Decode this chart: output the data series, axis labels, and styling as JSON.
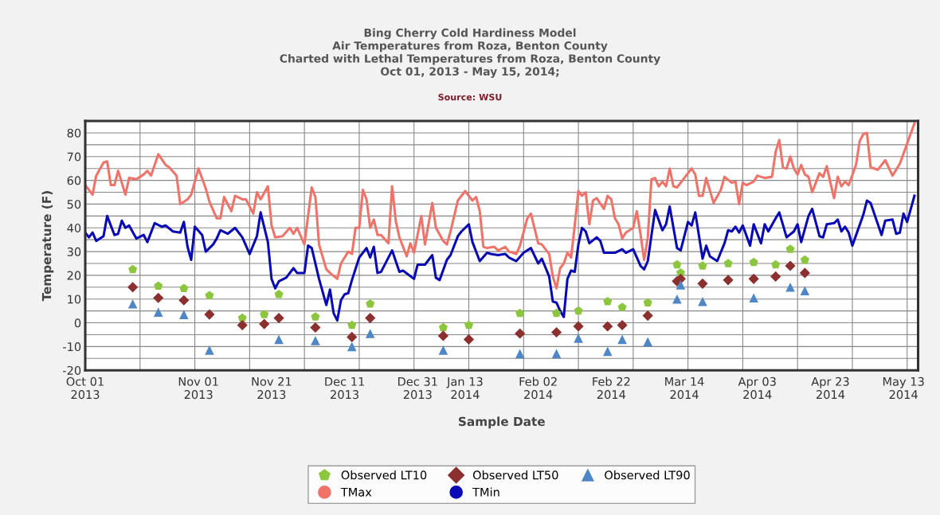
{
  "chart_data": {
    "type": "line",
    "title": "Bing Cherry Cold Hardiness Model\nAir Temperatures from Roza, Benton County\nCharted with Lethal Temperatures from Roza, Benton County\nOct 01, 2013 - May 15, 2014;",
    "annotations": [
      "Source: WSU"
    ],
    "xlabel": "Sample Date",
    "ylabel": "Temperature (F)",
    "xlim": [
      "2013-10-01",
      "2014-05-17"
    ],
    "xticks": [
      {
        "value": "2013-10-01",
        "label": "Oct 01\n2013"
      },
      {
        "value": "2013-11-01",
        "label": "Nov 01\n2013"
      },
      {
        "value": "2013-11-21",
        "label": "Nov 21\n2013"
      },
      {
        "value": "2013-12-11",
        "label": "Dec 11\n2013"
      },
      {
        "value": "2013-12-31",
        "label": "Dec 31\n2013"
      },
      {
        "value": "2014-01-13",
        "label": "Jan 13\n2014"
      },
      {
        "value": "2014-02-02",
        "label": "Feb 02\n2014"
      },
      {
        "value": "2014-02-22",
        "label": "Feb 22\n2014"
      },
      {
        "value": "2014-03-14",
        "label": "Mar 14\n2014"
      },
      {
        "value": "2014-04-03",
        "label": "Apr 03\n2014"
      },
      {
        "value": "2014-04-23",
        "label": "Apr 23\n2014"
      },
      {
        "value": "2014-05-13",
        "label": "May 13\n2014"
      },
      {
        "value": "2013-10-16",
        "label": null
      },
      {
        "value": "2013-10-31",
        "label": null
      },
      {
        "value": "2013-11-15",
        "label": null
      },
      {
        "value": "2013-11-30",
        "label": null
      },
      {
        "value": "2013-12-15",
        "label": null
      },
      {
        "value": "2013-12-30",
        "label": null
      },
      {
        "value": "2014-01-14",
        "label": null
      },
      {
        "value": "2014-01-29",
        "label": null
      },
      {
        "value": "2014-02-13",
        "label": null
      },
      {
        "value": "2014-02-28",
        "label": null
      },
      {
        "value": "2014-03-15",
        "label": null
      },
      {
        "value": "2014-03-30",
        "label": null
      },
      {
        "value": "2014-04-14",
        "label": null
      },
      {
        "value": "2014-04-29",
        "label": null
      },
      {
        "value": "2014-05-14",
        "label": null
      }
    ],
    "ylim": [
      -20,
      85
    ],
    "yticks": [
      -20,
      -10,
      0,
      10,
      20,
      30,
      40,
      50,
      60,
      70,
      80,
      {
        "value": -15,
        "label": null
      },
      {
        "value": -5,
        "label": null
      },
      {
        "value": 5,
        "label": null
      },
      {
        "value": 15,
        "label": null
      },
      {
        "value": 25,
        "label": null
      },
      {
        "value": 35,
        "label": null
      },
      {
        "value": 45,
        "label": null
      },
      {
        "value": 55,
        "label": null
      },
      {
        "value": 65,
        "label": null
      },
      {
        "value": 75,
        "label": null
      }
    ],
    "grid": true,
    "legend": "bottom",
    "series": [
      {
        "name": "Observed LT10",
        "type": "scatter",
        "color": "#8cc63f",
        "x": [
          "2013-10-14",
          "2013-10-21",
          "2013-10-28",
          "2013-11-04",
          "2013-11-13",
          "2013-11-19",
          "2013-11-23",
          "2013-12-03",
          "2013-12-13",
          "2013-12-18",
          "2014-01-07",
          "2014-01-14",
          "2014-01-28",
          "2014-02-07",
          "2014-02-13",
          "2014-02-21",
          "2014-02-25",
          "2014-03-04",
          "2014-03-12",
          "2014-03-13",
          "2014-03-19",
          "2014-03-26",
          "2014-04-02",
          "2014-04-08",
          "2014-04-12",
          "2014-04-16"
        ],
        "values": [
          22.5,
          15.5,
          14.5,
          11.5,
          2,
          3.5,
          12,
          2.5,
          -1,
          8,
          -2,
          -1,
          4,
          4,
          5,
          9,
          6.5,
          8.5,
          24.5,
          21,
          24,
          25,
          25.5,
          24.5,
          31,
          26.5
        ]
      },
      {
        "name": "Observed LT50",
        "type": "scatter",
        "marker": "diamond",
        "color": "#8b2f2f",
        "x": [
          "2013-10-14",
          "2013-10-21",
          "2013-10-28",
          "2013-11-04",
          "2013-11-13",
          "2013-11-19",
          "2013-11-23",
          "2013-12-03",
          "2013-12-13",
          "2013-12-18",
          "2014-01-07",
          "2014-01-14",
          "2014-01-28",
          "2014-02-07",
          "2014-02-13",
          "2014-02-21",
          "2014-02-25",
          "2014-03-04",
          "2014-03-12",
          "2014-03-13",
          "2014-03-19",
          "2014-03-26",
          "2014-04-02",
          "2014-04-08",
          "2014-04-12",
          "2014-04-16"
        ],
        "values": [
          15,
          10.5,
          9.5,
          3.5,
          -1,
          -0.5,
          2,
          -2,
          -6,
          2,
          -5.5,
          -7,
          -4.5,
          -4,
          -1.5,
          -1.5,
          -1,
          3,
          17.5,
          18.5,
          16.5,
          18,
          18.5,
          19.5,
          24,
          21
        ]
      },
      {
        "name": "Observed LT90",
        "type": "scatter",
        "marker": "triangle",
        "color": "#4f86c6",
        "x": [
          "2013-10-14",
          "2013-10-21",
          "2013-10-28",
          "2013-11-04",
          "2013-11-23",
          "2013-12-03",
          "2013-12-13",
          "2013-12-18",
          "2014-01-07",
          "2014-01-28",
          "2014-02-07",
          "2014-02-13",
          "2014-02-21",
          "2014-02-25",
          "2014-03-04",
          "2014-03-12",
          "2014-03-13",
          "2014-03-19",
          "2014-04-02",
          "2014-04-12",
          "2014-04-16"
        ],
        "values": [
          8,
          4.5,
          3.5,
          -11.5,
          -7,
          -7.5,
          -10,
          -4.5,
          -11.5,
          -13,
          -13,
          -6.5,
          -12,
          -7,
          -8,
          10,
          16,
          9,
          10.5,
          15,
          13.5
        ]
      },
      {
        "name": "TMax",
        "type": "line",
        "marker": "none",
        "line_style": "solid",
        "color": "#f0736a",
        "x": [
          "2013-10-01",
          "2013-10-03",
          "2013-10-04",
          "2013-10-06",
          "2013-10-07",
          "2013-10-08",
          "2013-10-09",
          "2013-10-10",
          "2013-10-12",
          "2013-10-13",
          "2013-10-15",
          "2013-10-17",
          "2013-10-18",
          "2013-10-19",
          "2013-10-21",
          "2013-10-23",
          "2013-10-24",
          "2013-10-26",
          "2013-10-27",
          "2013-10-29",
          "2013-10-30",
          "2013-11-01",
          "2013-11-03",
          "2013-11-04",
          "2013-11-06",
          "2013-11-07",
          "2013-11-08",
          "2013-11-10",
          "2013-11-11",
          "2013-11-13",
          "2013-11-14",
          "2013-11-16",
          "2013-11-17",
          "2013-11-18",
          "2013-11-20",
          "2013-11-21",
          "2013-11-22",
          "2013-11-24",
          "2013-11-26",
          "2013-11-27",
          "2013-11-28",
          "2013-11-30",
          "2013-12-02",
          "2013-12-03",
          "2013-12-04",
          "2013-12-06",
          "2013-12-07",
          "2013-12-09",
          "2013-12-10",
          "2013-12-12",
          "2013-12-13",
          "2013-12-14",
          "2013-12-15",
          "2013-12-16",
          "2013-12-17",
          "2013-12-18",
          "2013-12-19",
          "2013-12-20",
          "2013-12-21",
          "2013-12-23",
          "2013-12-24",
          "2013-12-25",
          "2013-12-26",
          "2013-12-28",
          "2013-12-29",
          "2013-12-30",
          "2014-01-01",
          "2014-01-02",
          "2014-01-04",
          "2014-01-05",
          "2014-01-07",
          "2014-01-08",
          "2014-01-09",
          "2014-01-11",
          "2014-01-13",
          "2014-01-14",
          "2014-01-15",
          "2014-01-16",
          "2014-01-17",
          "2014-01-18",
          "2014-01-19",
          "2014-01-21",
          "2014-01-22",
          "2014-01-24",
          "2014-01-25",
          "2014-01-27",
          "2014-01-28",
          "2014-01-30",
          "2014-01-31",
          "2014-02-02",
          "2014-02-03",
          "2014-02-05",
          "2014-02-06",
          "2014-02-07",
          "2014-02-08",
          "2014-02-09",
          "2014-02-10",
          "2014-02-11",
          "2014-02-12",
          "2014-02-13",
          "2014-02-14",
          "2014-02-15",
          "2014-02-16",
          "2014-02-17",
          "2014-02-18",
          "2014-02-20",
          "2014-02-21",
          "2014-02-22",
          "2014-02-23",
          "2014-02-24",
          "2014-02-25",
          "2014-02-26",
          "2014-02-28",
          "2014-03-01",
          "2014-03-02",
          "2014-03-03",
          "2014-03-04",
          "2014-03-05",
          "2014-03-06",
          "2014-03-07",
          "2014-03-08",
          "2014-03-09",
          "2014-03-10",
          "2014-03-11",
          "2014-03-12",
          "2014-03-14",
          "2014-03-16",
          "2014-03-17",
          "2014-03-18",
          "2014-03-19",
          "2014-03-20",
          "2014-03-22",
          "2014-03-24",
          "2014-03-25",
          "2014-03-27",
          "2014-03-28",
          "2014-03-29",
          "2014-03-30",
          "2014-03-31",
          "2014-04-02",
          "2014-04-03",
          "2014-04-05",
          "2014-04-07",
          "2014-04-08",
          "2014-04-09",
          "2014-04-10",
          "2014-04-11",
          "2014-04-12",
          "2014-04-13",
          "2014-04-14",
          "2014-04-15",
          "2014-04-16",
          "2014-04-17",
          "2014-04-18",
          "2014-04-19",
          "2014-04-20",
          "2014-04-21",
          "2014-04-22",
          "2014-04-23",
          "2014-04-24",
          "2014-04-25",
          "2014-04-26",
          "2014-04-27",
          "2014-04-28",
          "2014-04-30",
          "2014-05-01",
          "2014-05-02",
          "2014-05-03",
          "2014-05-04",
          "2014-05-06",
          "2014-05-08",
          "2014-05-10",
          "2014-05-12",
          "2014-05-14",
          "2014-05-16"
        ],
        "values": [
          58,
          54,
          62,
          67.5,
          68,
          58,
          58,
          64,
          54,
          61,
          60.5,
          62.5,
          64,
          62,
          71,
          66.5,
          65.5,
          62,
          50,
          52,
          54,
          65,
          56.5,
          51,
          44,
          44,
          53,
          47,
          53.5,
          52,
          52,
          46,
          55,
          52,
          57.5,
          41,
          36,
          36.5,
          40,
          37.5,
          40,
          33,
          57,
          53,
          33,
          22.5,
          21,
          18.5,
          25,
          30,
          29,
          40,
          40,
          56,
          52,
          40,
          43.5,
          37,
          37,
          33.5,
          57.5,
          43,
          36,
          28,
          33.5,
          29.5,
          45,
          33,
          50.5,
          40,
          34.5,
          33,
          38.5,
          51.5,
          55.5,
          53.5,
          51.5,
          53,
          47,
          32,
          31.5,
          32,
          30.5,
          32,
          30,
          29,
          32.5,
          44,
          46,
          33.5,
          33,
          29,
          19.5,
          14.5,
          23,
          25,
          29.5,
          27.5,
          41,
          55.5,
          53.5,
          55,
          41.5,
          51.5,
          52.5,
          48,
          53.5,
          52,
          44,
          41.5,
          35.5,
          38,
          40,
          47,
          37.5,
          26.5,
          36,
          60.5,
          61,
          57.5,
          59.5,
          57.5,
          65,
          57.5,
          57,
          61,
          65,
          62.5,
          53.5,
          53.5,
          61,
          50.5,
          56,
          61.5,
          59,
          59.5,
          50,
          59,
          58,
          59.5,
          62,
          61,
          61.5,
          72,
          77,
          65.5,
          65,
          70,
          65,
          62.5,
          66.5,
          62.5,
          61.5,
          55,
          59,
          63,
          61.5,
          66,
          59,
          52.5,
          61.5,
          57.5,
          59.5,
          58,
          66.5,
          76.5,
          79.5,
          80,
          65.5,
          64.5,
          68.5,
          62,
          67,
          75.5,
          84
        ]
      },
      {
        "name": "TMin",
        "type": "line",
        "marker": "none",
        "line_style": "solid",
        "color": "#0a0ab4",
        "x": [
          "2013-10-01",
          "2013-10-02",
          "2013-10-03",
          "2013-10-04",
          "2013-10-06",
          "2013-10-07",
          "2013-10-09",
          "2013-10-10",
          "2013-10-11",
          "2013-10-12",
          "2013-10-13",
          "2013-10-15",
          "2013-10-17",
          "2013-10-18",
          "2013-10-20",
          "2013-10-22",
          "2013-10-23",
          "2013-10-25",
          "2013-10-27",
          "2013-10-28",
          "2013-10-29",
          "2013-10-30",
          "2013-10-31",
          "2013-11-02",
          "2013-11-03",
          "2013-11-05",
          "2013-11-06",
          "2013-11-07",
          "2013-11-09",
          "2013-11-11",
          "2013-11-13",
          "2013-11-15",
          "2013-11-17",
          "2013-11-18",
          "2013-11-20",
          "2013-11-21",
          "2013-11-22",
          "2013-11-23",
          "2013-11-25",
          "2013-11-27",
          "2013-11-28",
          "2013-11-30",
          "2013-12-01",
          "2013-12-02",
          "2013-12-04",
          "2013-12-06",
          "2013-12-07",
          "2013-12-08",
          "2013-12-09",
          "2013-12-10",
          "2013-12-11",
          "2013-12-12",
          "2013-12-13",
          "2013-12-15",
          "2013-12-17",
          "2013-12-18",
          "2013-12-19",
          "2013-12-20",
          "2013-12-21",
          "2013-12-24",
          "2013-12-26",
          "2013-12-27",
          "2013-12-30",
          "2013-12-31",
          "2014-01-02",
          "2014-01-04",
          "2014-01-05",
          "2014-01-06",
          "2014-01-08",
          "2014-01-09",
          "2014-01-11",
          "2014-01-12",
          "2014-01-14",
          "2014-01-15",
          "2014-01-17",
          "2014-01-19",
          "2014-01-20",
          "2014-01-22",
          "2014-01-24",
          "2014-01-25",
          "2014-01-27",
          "2014-01-29",
          "2014-01-31",
          "2014-02-02",
          "2014-02-03",
          "2014-02-05",
          "2014-02-06",
          "2014-02-07",
          "2014-02-08",
          "2014-02-09",
          "2014-02-10",
          "2014-02-11",
          "2014-02-12",
          "2014-02-13",
          "2014-02-14",
          "2014-02-15",
          "2014-02-16",
          "2014-02-18",
          "2014-02-19",
          "2014-02-20",
          "2014-02-23",
          "2014-02-25",
          "2014-02-26",
          "2014-02-28",
          "2014-03-02",
          "2014-03-03",
          "2014-03-04",
          "2014-03-06",
          "2014-03-08",
          "2014-03-09",
          "2014-03-10",
          "2014-03-12",
          "2014-03-13",
          "2014-03-15",
          "2014-03-16",
          "2014-03-17",
          "2014-03-19",
          "2014-03-20",
          "2014-03-21",
          "2014-03-23",
          "2014-03-25",
          "2014-03-26",
          "2014-03-27",
          "2014-03-28",
          "2014-03-29",
          "2014-03-30",
          "2014-04-01",
          "2014-04-02",
          "2014-04-04",
          "2014-04-05",
          "2014-04-06",
          "2014-04-08",
          "2014-04-09",
          "2014-04-11",
          "2014-04-13",
          "2014-04-14",
          "2014-04-15",
          "2014-04-17",
          "2014-04-18",
          "2014-04-20",
          "2014-04-21",
          "2014-04-22",
          "2014-04-24",
          "2014-04-25",
          "2014-04-26",
          "2014-04-27",
          "2014-04-28",
          "2014-04-29",
          "2014-05-02",
          "2014-05-03",
          "2014-05-04",
          "2014-05-07",
          "2014-05-08",
          "2014-05-10",
          "2014-05-11",
          "2014-05-12",
          "2014-05-13",
          "2014-05-14",
          "2014-05-15",
          "2014-05-16"
        ],
        "values": [
          38,
          36,
          38,
          34.5,
          36.5,
          45,
          37,
          37.5,
          43,
          40,
          41,
          35.5,
          37,
          34,
          42,
          40.5,
          41,
          38.5,
          38,
          42.5,
          32,
          26.5,
          40.5,
          37,
          30,
          33,
          35.5,
          39,
          37.5,
          40,
          36,
          29,
          36.5,
          46.5,
          34,
          18.5,
          14.5,
          17.5,
          19,
          23,
          21,
          21,
          32.5,
          31.5,
          18.5,
          7.5,
          14,
          4,
          1,
          9.5,
          12,
          12.5,
          18,
          27.5,
          31.5,
          27.5,
          32,
          21,
          21.5,
          30.5,
          21.5,
          22,
          18.5,
          24.5,
          24.5,
          28.5,
          19,
          18,
          26.5,
          28.5,
          36.5,
          38.5,
          41.5,
          34,
          26,
          29.5,
          29,
          28.5,
          29,
          27.5,
          26,
          29.5,
          31.5,
          25,
          27,
          19.5,
          9,
          8.5,
          5,
          2.5,
          18.5,
          22,
          21.5,
          33,
          40,
          38.5,
          33.5,
          36,
          34.5,
          29.5,
          29.5,
          31,
          29.5,
          31,
          24,
          22.5,
          26,
          47.5,
          39,
          41.5,
          49,
          31.5,
          30.5,
          42.5,
          41,
          46.5,
          27,
          32.5,
          28,
          26,
          33.5,
          39,
          38.5,
          40.5,
          38,
          41,
          32.5,
          41.5,
          33.5,
          41.5,
          38.5,
          44,
          46.5,
          36,
          38.5,
          41.5,
          34,
          45,
          48,
          36.5,
          36,
          41.5,
          42,
          43.5,
          38.5,
          40.5,
          38,
          32.5,
          45.5,
          51.5,
          50.5,
          37,
          43,
          43.5,
          37.5,
          38,
          46,
          42.5,
          48,
          53.5
        ]
      }
    ]
  }
}
